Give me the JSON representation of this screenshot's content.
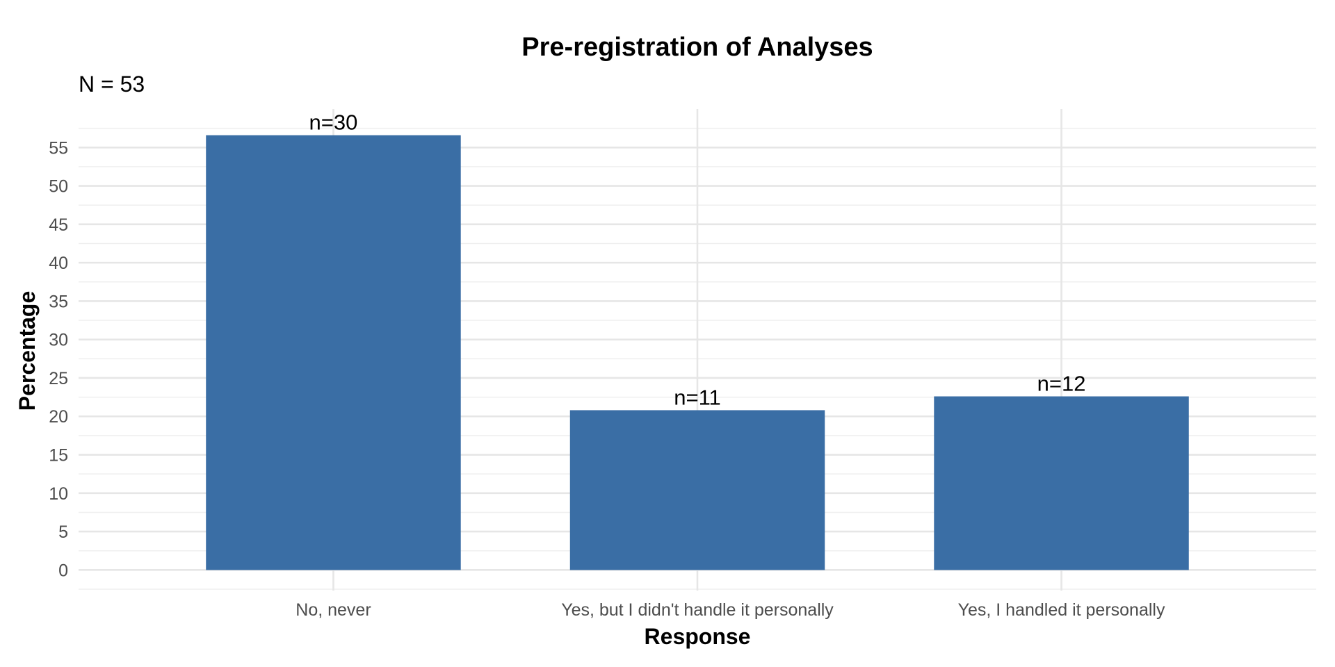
{
  "chart_data": {
    "type": "bar",
    "title": "Pre-registration of Analyses",
    "subtitle": "N = 53",
    "xlabel": "Response",
    "ylabel": "Percentage",
    "categories": [
      "No, never",
      "Yes, but I didn't handle it personally",
      "Yes, I handled it personally"
    ],
    "values": [
      56.6,
      20.8,
      22.6
    ],
    "data_labels": [
      "n=30",
      "n=11",
      "n=12"
    ],
    "ylim": [
      -2.5,
      60
    ],
    "y_ticks": [
      0,
      5,
      10,
      15,
      20,
      25,
      30,
      35,
      40,
      45,
      50,
      55
    ],
    "y_tick_labels": [
      "0",
      "5",
      "10",
      "15",
      "20",
      "25",
      "30",
      "35",
      "40",
      "45",
      "50",
      "55"
    ],
    "grid": true,
    "legend": "none",
    "colors": {
      "bar": "#3a6ea5",
      "grid": "#e6e6e6",
      "tick_text": "#4d4d4d"
    }
  }
}
